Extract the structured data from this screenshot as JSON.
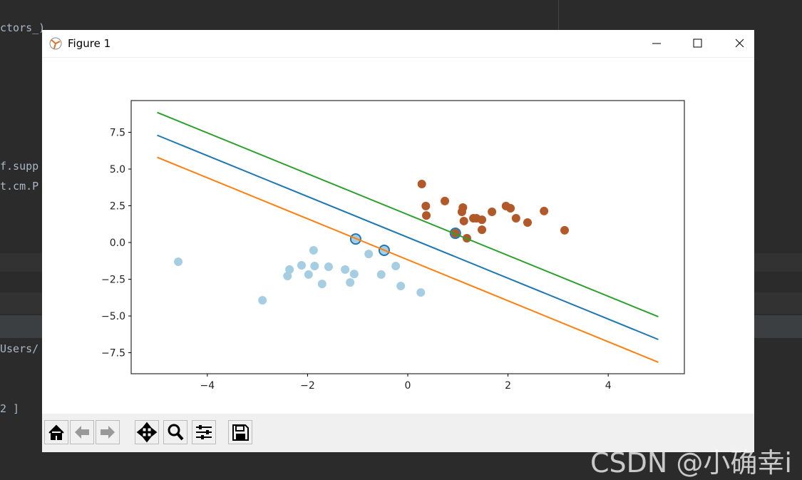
{
  "background": {
    "editor_lines": [
      "ctors_)",
      "f.supp",
      "t.cm.P",
      "Users/",
      "2 ]"
    ]
  },
  "window": {
    "title": "Figure 1"
  },
  "watermark": "CSDN @小确幸i",
  "chart_data": {
    "type": "scatter",
    "xlim": [
      -5.52,
      5.52
    ],
    "ylim": [
      -8.93,
      9.66
    ],
    "xticks": [
      {
        "value": -4,
        "label": "−4"
      },
      {
        "value": -2,
        "label": "−2"
      },
      {
        "value": 0,
        "label": "0"
      },
      {
        "value": 2,
        "label": "2"
      },
      {
        "value": 4,
        "label": "4"
      }
    ],
    "yticks": [
      7.5,
      {
        "value": 5,
        "label": "5.0"
      },
      2.5,
      {
        "value": 0,
        "label": "0.0"
      },
      {
        "value": -2.5,
        "label": "−2.5"
      },
      {
        "value": -5,
        "label": "−5.0"
      },
      {
        "value": -7.5,
        "label": "−7.5"
      }
    ],
    "series": [
      {
        "color": "#a6cee3",
        "x": [
          -4.58,
          -2.9,
          -2.4,
          -2.36,
          -2.12,
          -1.98,
          -1.88,
          -1.86,
          -1.71,
          -1.58,
          -1.25,
          -1.15,
          -1.07,
          -1.04,
          -0.78,
          -0.53,
          -0.47,
          -0.24,
          -0.14,
          0.26
        ],
        "values": [
          -1.31,
          -3.93,
          -2.28,
          -1.84,
          -1.55,
          -2.18,
          -0.53,
          -1.6,
          -2.82,
          -1.65,
          -1.84,
          -2.72,
          -2.14,
          0.24,
          -0.78,
          -2.18,
          -0.53,
          -1.6,
          -2.96,
          -3.4
        ]
      },
      {
        "color": "#b15928",
        "x": [
          0.28,
          0.36,
          0.37,
          0.74,
          0.95,
          1.08,
          1.1,
          1.12,
          1.18,
          1.31,
          1.37,
          1.48,
          1.48,
          1.68,
          1.96,
          2.05,
          2.16,
          2.39,
          2.72,
          3.13
        ],
        "values": [
          3.98,
          2.48,
          1.84,
          2.82,
          0.63,
          2.09,
          2.38,
          1.46,
          0.29,
          1.65,
          1.65,
          1.55,
          0.87,
          2.09,
          2.48,
          2.33,
          1.65,
          1.36,
          2.14,
          0.83
        ]
      }
    ],
    "support_vectors": {
      "edgecolor": "#1f77b4",
      "x": [
        -1.04,
        -0.47,
        0.95
      ],
      "values": [
        0.24,
        -0.53,
        0.63
      ]
    },
    "lines": [
      {
        "color": "#1f77b4",
        "x": [
          -5,
          5
        ],
        "values": [
          7.3,
          -6.6
        ]
      },
      {
        "color": "#ff7f0e",
        "x": [
          -5,
          5
        ],
        "values": [
          5.8,
          -8.15
        ]
      },
      {
        "color": "#2ca02c",
        "x": [
          -5,
          5
        ],
        "values": [
          8.85,
          -5.05
        ]
      }
    ]
  }
}
